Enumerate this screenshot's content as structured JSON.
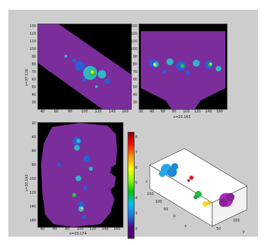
{
  "panels": {
    "top_left": {
      "ylabel": "x=37.136",
      "yticks": [
        "130",
        "120",
        "110",
        "100",
        "90",
        "80",
        "70",
        "60",
        "50",
        "40",
        "30"
      ],
      "xticks": [
        "40",
        "60",
        "80",
        "100",
        "120",
        "140",
        "160"
      ]
    },
    "top_right": {
      "xlabel": "x=20.162",
      "yticks": [
        "130",
        "120",
        "110",
        "100",
        "90",
        "80",
        "70",
        "60",
        "50",
        "40",
        "30"
      ],
      "xticks": [
        "20",
        "40",
        "60",
        "80",
        "100",
        "120",
        "140",
        "160"
      ]
    },
    "bottom_left": {
      "ylabel": "x=30.163",
      "xlabel": "x=20.174",
      "yticks": [
        "20",
        "40",
        "60",
        "80",
        "100",
        "120",
        "140",
        "160"
      ],
      "xticks": [
        "40",
        "60",
        "80",
        "100",
        "120",
        "140",
        "160"
      ]
    },
    "colorbar": {
      "ticks": [
        "8",
        "7",
        "6",
        "5",
        "4",
        "3",
        "2"
      ]
    },
    "plot3d": {
      "axis_ticks_left": [
        "150",
        "100",
        "50",
        "0"
      ],
      "axis_ticks_right": [
        "50",
        "100"
      ],
      "axis_letters": [
        "x",
        "y",
        "z"
      ]
    }
  },
  "colors": {
    "background": "#cdcdcd",
    "mask": "#7b2d9b",
    "hot": "#f5e72a",
    "warm": "#22c24a",
    "mid": "#2fb6c8",
    "cool": "#2a5fd6"
  }
}
